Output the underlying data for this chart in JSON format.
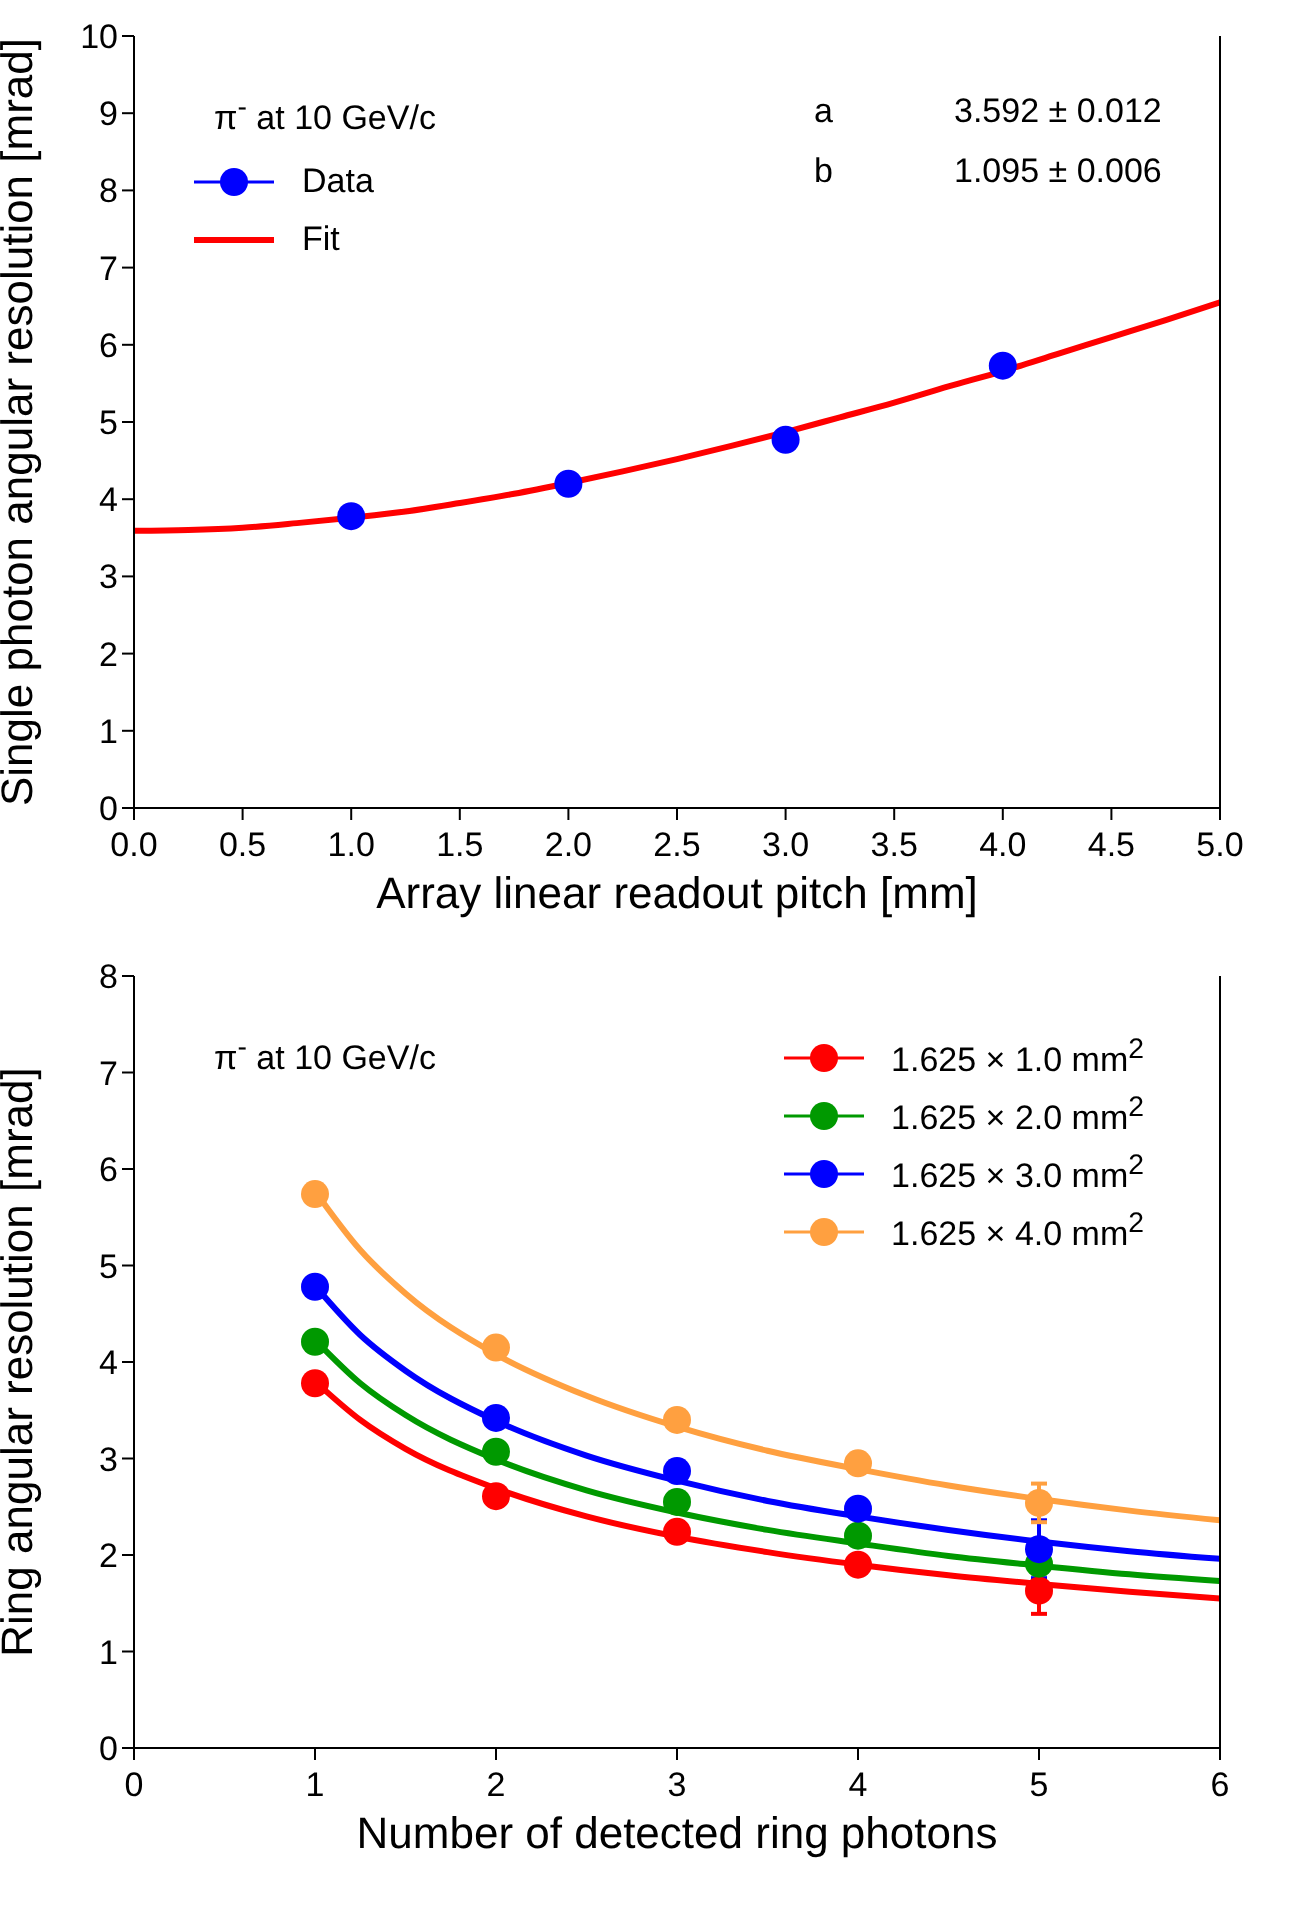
{
  "chart_data": [
    {
      "type": "scatter",
      "xlabel": "Array linear readout pitch [mm]",
      "ylabel": "Single photon angular resolution [mrad]",
      "annotations": [
        "π$^{-}$ at 10 GeV/c",
        "a",
        "3.592 ± 0.012",
        "b",
        "1.095 ± 0.006"
      ],
      "xlim": [
        0,
        5
      ],
      "xticks": [
        {
          "value": 0,
          "label": "0.0"
        },
        {
          "value": 0.5,
          "label": "0.5"
        },
        {
          "value": 1,
          "label": "1.0"
        },
        {
          "value": 1.5,
          "label": "1.5"
        },
        {
          "value": 2,
          "label": "2.0"
        },
        {
          "value": 2.5,
          "label": "2.5"
        },
        {
          "value": 3,
          "label": "3.0"
        },
        {
          "value": 3.5,
          "label": "3.5"
        },
        {
          "value": 4,
          "label": "4.0"
        },
        {
          "value": 4.5,
          "label": "4.5"
        },
        {
          "value": 5,
          "label": "5.0"
        }
      ],
      "ylim": [
        0,
        10
      ],
      "yticks": [
        0,
        1,
        2,
        3,
        4,
        5,
        6,
        7,
        8,
        9,
        10
      ],
      "legend": "top left",
      "marker": "circle",
      "series": [
        {
          "name": "Data",
          "color": "#0000ff",
          "x": [
            1,
            2,
            3,
            4
          ],
          "values": [
            3.78,
            4.2,
            4.77,
            5.73
          ]
        },
        {
          "name": "Fit",
          "type": "line",
          "marker": "none",
          "color": "#ff0000",
          "x": [
            0,
            0.25,
            0.5,
            0.75,
            1,
            1.25,
            1.5,
            1.75,
            2,
            2.25,
            2.5,
            2.75,
            3,
            3.25,
            3.5,
            3.75,
            4,
            4.25,
            4.5,
            4.75,
            5
          ],
          "values": [
            3.59,
            3.6,
            3.63,
            3.69,
            3.76,
            3.84,
            3.95,
            4.07,
            4.21,
            4.36,
            4.52,
            4.69,
            4.87,
            5.06,
            5.25,
            5.46,
            5.66,
            5.88,
            6.1,
            6.32,
            6.55
          ]
        }
      ]
    },
    {
      "type": "scatter",
      "xlabel": "Number of detected ring photons",
      "ylabel": "Ring angular resolution [mrad]",
      "annotations": [
        "π$^{-}$ at 10 GeV/c"
      ],
      "xlim": [
        0,
        6
      ],
      "xticks": [
        0,
        1,
        2,
        3,
        4,
        5,
        6
      ],
      "ylim": [
        0,
        8
      ],
      "yticks": [
        0,
        1,
        2,
        3,
        4,
        5,
        6,
        7,
        8
      ],
      "legend": "top right",
      "marker": "circle",
      "x": [
        1,
        2,
        3,
        4,
        5
      ],
      "series": [
        {
          "name": "1.625 × 1.0 mm$^{2}$",
          "color": "#ff0000",
          "values": [
            3.78,
            2.61,
            2.24,
            1.9,
            1.63
          ],
          "errors": [
            null,
            null,
            null,
            null,
            0.24
          ]
        },
        {
          "name": "1.625 × 2.0 mm$^{2}$",
          "color": "#009900",
          "values": [
            4.21,
            3.07,
            2.55,
            2.2,
            1.91
          ],
          "errors": [
            null,
            null,
            null,
            null,
            0.1
          ]
        },
        {
          "name": "1.625 × 3.0 mm$^{2}$",
          "color": "#0000ff",
          "values": [
            4.78,
            3.42,
            2.87,
            2.48,
            2.06
          ],
          "errors": [
            null,
            null,
            null,
            null,
            0.3
          ]
        },
        {
          "name": "1.625 × 4.0 mm$^{2}$",
          "color": "#ffa040",
          "values": [
            5.74,
            4.15,
            3.4,
            2.95,
            2.54
          ],
          "errors": [
            null,
            null,
            null,
            null,
            0.2
          ]
        },
        {
          "type": "line",
          "marker": "none",
          "color": "#ff0000",
          "x": [
            1,
            1.25,
            1.5,
            2,
            2.5,
            3,
            3.5,
            4,
            4.5,
            5,
            5.5,
            6
          ],
          "values": [
            3.8,
            3.4,
            3.1,
            2.69,
            2.4,
            2.19,
            2.03,
            1.9,
            1.79,
            1.7,
            1.62,
            1.55
          ]
        },
        {
          "type": "line",
          "marker": "none",
          "color": "#009900",
          "x": [
            1,
            1.25,
            1.5,
            2,
            2.5,
            3,
            3.5,
            4,
            4.5,
            5,
            5.5,
            6
          ],
          "values": [
            4.23,
            3.78,
            3.45,
            2.99,
            2.67,
            2.44,
            2.26,
            2.12,
            1.99,
            1.89,
            1.8,
            1.73
          ]
        },
        {
          "type": "line",
          "marker": "none",
          "color": "#0000ff",
          "x": [
            1,
            1.25,
            1.5,
            2,
            2.5,
            3,
            3.5,
            4,
            4.5,
            5,
            5.5,
            6
          ],
          "values": [
            4.79,
            4.28,
            3.91,
            3.39,
            3.03,
            2.77,
            2.56,
            2.4,
            2.26,
            2.14,
            2.04,
            1.96
          ]
        },
        {
          "type": "line",
          "marker": "none",
          "color": "#ffa040",
          "x": [
            1,
            1.25,
            1.5,
            2,
            2.5,
            3,
            3.5,
            4,
            4.5,
            5,
            5.5,
            6
          ],
          "values": [
            5.77,
            5.16,
            4.71,
            4.08,
            3.65,
            3.33,
            3.08,
            2.89,
            2.72,
            2.58,
            2.46,
            2.36
          ]
        }
      ]
    }
  ]
}
